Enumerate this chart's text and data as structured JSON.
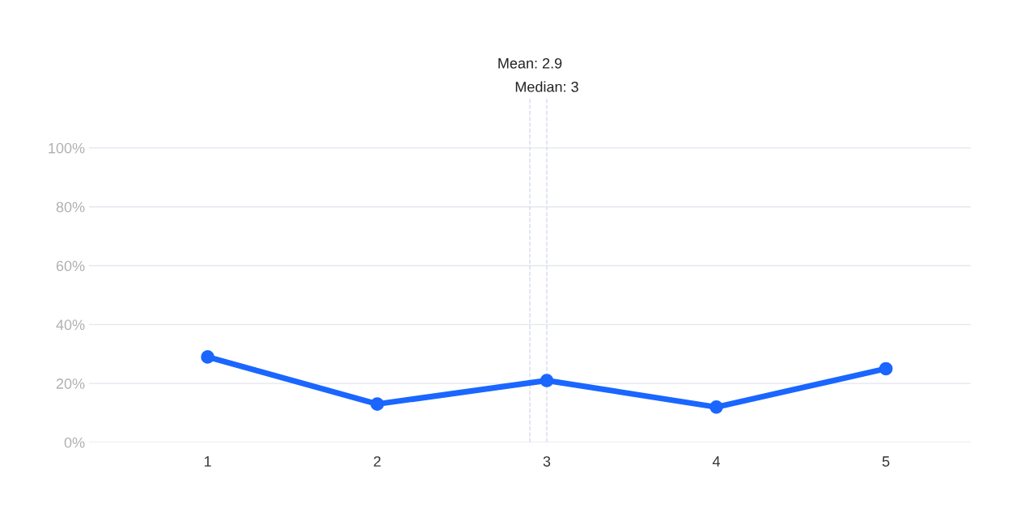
{
  "chart_data": {
    "type": "line",
    "x": [
      1,
      2,
      3,
      4,
      5
    ],
    "series": [
      {
        "color": "#1a66ff",
        "values": [
          29,
          13,
          21,
          12,
          25
        ]
      }
    ],
    "xlim": [
      0.3,
      5.5
    ],
    "xticks": [
      1,
      2,
      3,
      4,
      5
    ],
    "ylim": [
      0,
      117
    ],
    "yticks": [
      {
        "value": 0,
        "label": "0%"
      },
      {
        "value": 20,
        "label": "20%"
      },
      {
        "value": 40,
        "label": "40%"
      },
      {
        "value": 60,
        "label": "60%"
      },
      {
        "value": 80,
        "label": "80%"
      },
      {
        "value": 100,
        "label": "100%"
      }
    ],
    "grid": "y",
    "marker": "circle",
    "line_style": "solid",
    "ref_lines": [
      {
        "axis": "x",
        "value": 2.9,
        "label": "Mean: 2.9",
        "color": "#d5dcec",
        "line_style": "dashed"
      },
      {
        "axis": "x",
        "value": 3,
        "label": "Median: 3",
        "color": "#d5dcec",
        "line_style": "dashed"
      }
    ]
  }
}
